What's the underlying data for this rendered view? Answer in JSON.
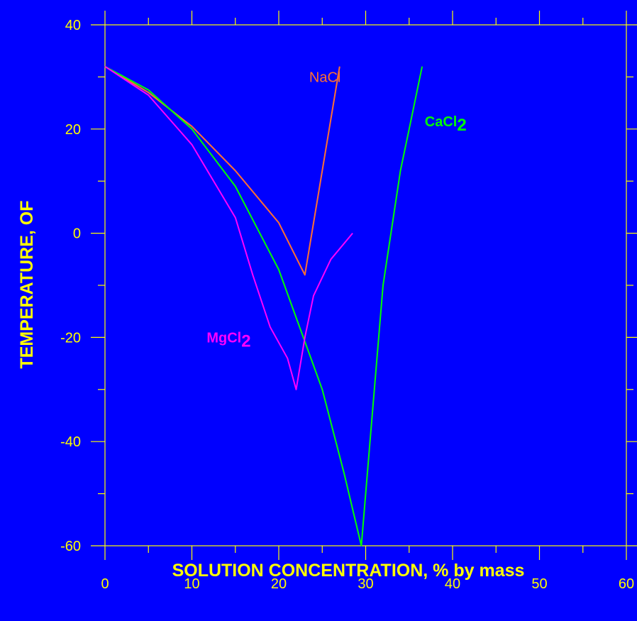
{
  "chart_data": {
    "type": "line",
    "xlabel": "SOLUTION CONCENTRATION, % by mass",
    "ylabel": "TEMPERATURE, OF",
    "xlim": [
      0,
      60
    ],
    "ylim": [
      -60,
      40
    ],
    "xticks": [
      0,
      10,
      20,
      30,
      40,
      50,
      60
    ],
    "yticks": [
      40,
      20,
      0,
      -20,
      -40,
      -60
    ],
    "x_minor_step": 5,
    "y_minor_step": 10,
    "grid": false,
    "colors": {
      "background": "#0000ff",
      "axes_text": "#ffff00",
      "frame": "#ffff00"
    },
    "series": [
      {
        "name": "NaCl",
        "label_main": "NaCl",
        "label_sub": "",
        "label_bold": false,
        "label_anchor": [
          23.5,
          29
        ],
        "color": "#ff7030",
        "x": [
          0,
          5,
          10,
          15,
          20,
          23,
          25,
          27
        ],
        "y": [
          32,
          27,
          20.5,
          12,
          2,
          -8,
          12,
          32
        ]
      },
      {
        "name": "CaCl2",
        "label_main": "CaCl",
        "label_sub": "2",
        "label_bold": true,
        "label_anchor": [
          36.8,
          20.5
        ],
        "color": "#00ff00",
        "x": [
          0,
          5,
          10,
          15,
          20,
          25,
          27.5,
          29.5,
          30.5,
          32,
          34,
          35,
          36.5
        ],
        "y": [
          32,
          27.5,
          20,
          9,
          -7,
          -30,
          -46,
          -60,
          -40,
          -10,
          12,
          20,
          32
        ]
      },
      {
        "name": "MgCl2",
        "label_main": "MgCl",
        "label_sub": "2",
        "label_bold": true,
        "label_anchor": [
          11.7,
          -21
        ],
        "color": "#ff00ff",
        "x": [
          0,
          5,
          10,
          15,
          17,
          19,
          21,
          22,
          23,
          24,
          26,
          28.5
        ],
        "y": [
          32,
          26.5,
          17,
          3,
          -8,
          -18,
          -24,
          -30,
          -20,
          -12,
          -5,
          0
        ]
      }
    ]
  }
}
